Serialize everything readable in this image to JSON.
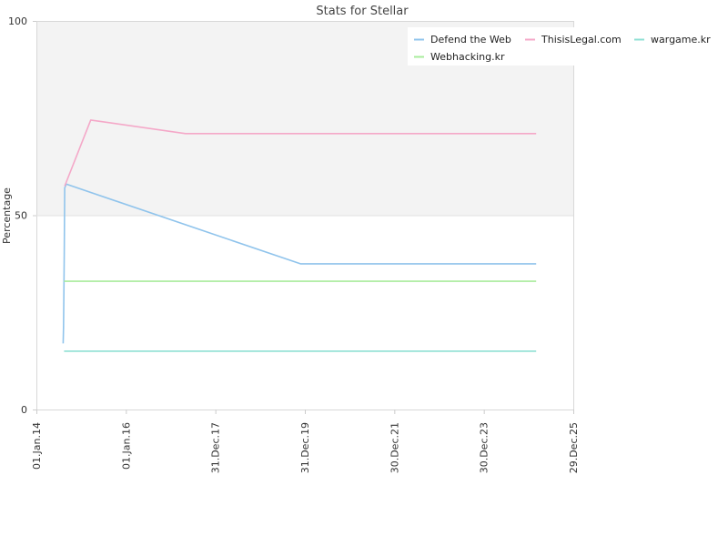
{
  "chart_data": {
    "type": "line",
    "title": "Stats for Stellar",
    "xlabel": "",
    "ylabel": "Percentage",
    "ylim": [
      0,
      100
    ],
    "xlim": [
      "2014-01-01",
      "2025-12-29"
    ],
    "y_ticks": [
      0,
      50,
      100
    ],
    "x_ticks": [
      {
        "date": "2014-01-01",
        "label": "01.Jan.14"
      },
      {
        "date": "2016-01-01",
        "label": "01.Jan.16"
      },
      {
        "date": "2017-12-31",
        "label": "31.Dec.17"
      },
      {
        "date": "2019-12-31",
        "label": "31.Dec.19"
      },
      {
        "date": "2021-12-30",
        "label": "30.Dec.21"
      },
      {
        "date": "2023-12-30",
        "label": "30.Dec.23"
      },
      {
        "date": "2025-12-29",
        "label": "29.Dec.25"
      }
    ],
    "grid": false,
    "upper_band_shaded": true,
    "legend_position": "top-right",
    "series": [
      {
        "name": "Defend the Web",
        "color": "#90c4ec",
        "points": [
          {
            "x": "2014-08-07",
            "y": 17
          },
          {
            "x": "2014-08-10",
            "y": 21
          },
          {
            "x": "2014-08-13",
            "y": 30
          },
          {
            "x": "2014-08-16",
            "y": 40
          },
          {
            "x": "2014-08-20",
            "y": 57
          },
          {
            "x": "2014-09-01",
            "y": 58
          },
          {
            "x": "2019-11-25",
            "y": 37.5
          },
          {
            "x": "2025-03-01",
            "y": 37.5
          }
        ]
      },
      {
        "name": "ThisisLegal.com",
        "color": "#f4a8c8",
        "points": [
          {
            "x": "2014-08-20",
            "y": 57.5
          },
          {
            "x": "2015-03-20",
            "y": 74.5
          },
          {
            "x": "2017-05-01",
            "y": 71
          },
          {
            "x": "2025-03-01",
            "y": 71
          }
        ]
      },
      {
        "name": "wargame.kr",
        "color": "#8fe0d4",
        "points": [
          {
            "x": "2014-08-15",
            "y": 15
          },
          {
            "x": "2025-03-01",
            "y": 15
          }
        ]
      },
      {
        "name": "Webhacking.kr",
        "color": "#a8ec9c",
        "points": [
          {
            "x": "2014-08-15",
            "y": 33
          },
          {
            "x": "2025-03-01",
            "y": 33
          }
        ]
      }
    ]
  }
}
